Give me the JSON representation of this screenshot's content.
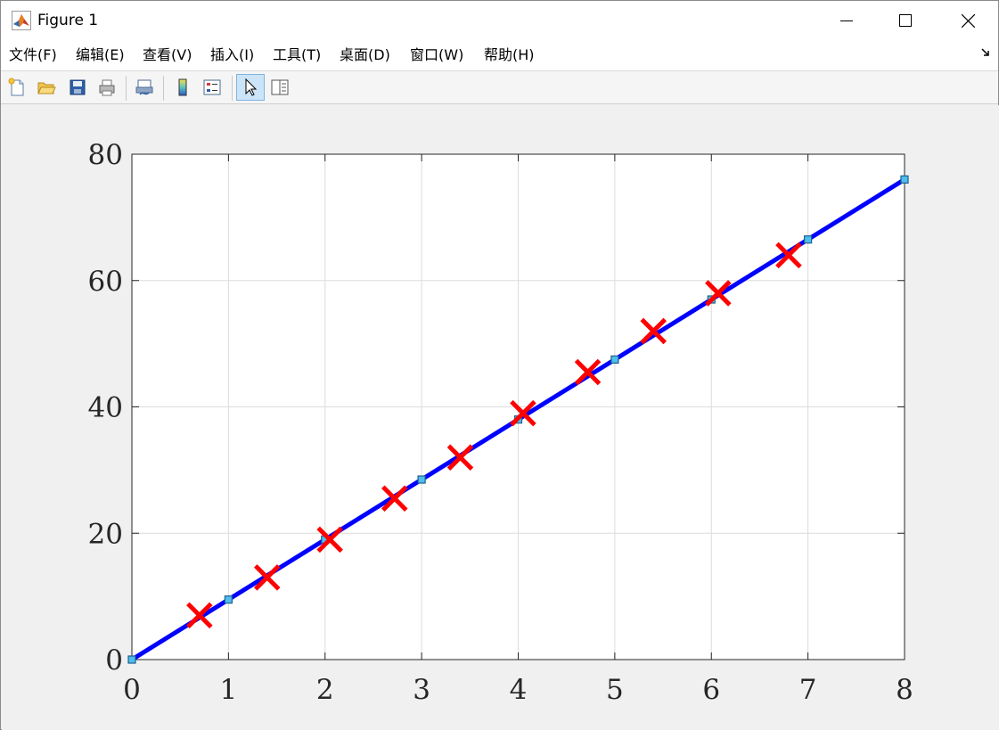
{
  "window": {
    "title": "Figure 1",
    "menus": [
      "文件(F)",
      "编辑(E)",
      "查看(V)",
      "插入(I)",
      "工具(T)",
      "桌面(D)",
      "窗口(W)",
      "帮助(H)"
    ]
  },
  "toolbar": {
    "tools": [
      "new-figure-icon",
      "open-file-icon",
      "save-icon",
      "print-icon",
      "link-plot-icon",
      "colorbar-icon",
      "legend-icon",
      "edit-plot-arrow-icon",
      "property-inspector-icon"
    ]
  },
  "colors": {
    "line": "#0000ff",
    "line_marker_fill": "#4dbeee",
    "scatter_marker": "#ff0000",
    "grid": "#dcdcdc"
  },
  "chart_data": {
    "type": "line",
    "title": "",
    "xlabel": "",
    "ylabel": "",
    "xlim": [
      0,
      8
    ],
    "ylim": [
      0,
      80
    ],
    "xticks": [
      0,
      1,
      2,
      3,
      4,
      5,
      6,
      7,
      8
    ],
    "yticks": [
      0,
      20,
      40,
      60,
      80
    ],
    "grid": true,
    "series": [
      {
        "type": "line",
        "marker": "square",
        "x": [
          0,
          1,
          2,
          3,
          4,
          5,
          6,
          7,
          8
        ],
        "y": [
          0,
          9.5,
          19,
          28.5,
          38,
          47.5,
          57,
          66.5,
          76
        ]
      },
      {
        "type": "scatter",
        "marker": "x",
        "x": [
          0.7,
          1.4,
          2.05,
          2.72,
          3.4,
          4.05,
          4.72,
          5.4,
          6.07,
          6.8
        ],
        "y": [
          7,
          13,
          19,
          25.5,
          32,
          39,
          45.5,
          52,
          58,
          64
        ]
      }
    ]
  }
}
